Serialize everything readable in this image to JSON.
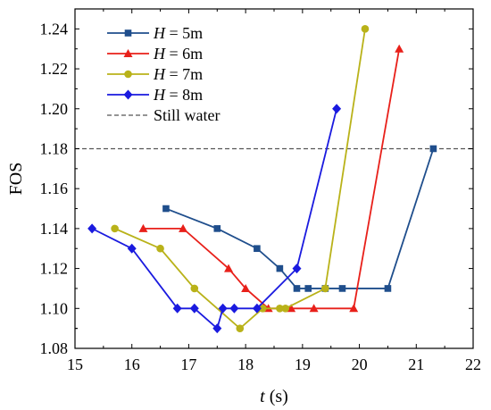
{
  "chart_data": {
    "type": "line",
    "xlabel": "t (s)",
    "ylabel": "FOS",
    "xlim": [
      15,
      22
    ],
    "ylim": [
      1.08,
      1.25
    ],
    "x_ticks": [
      "15",
      "16",
      "17",
      "18",
      "19",
      "20",
      "21",
      "22"
    ],
    "y_ticks": [
      "1.08",
      "1.10",
      "1.12",
      "1.14",
      "1.16",
      "1.18",
      "1.20",
      "1.22",
      "1.24"
    ],
    "x_tick_values": [
      15,
      16,
      17,
      18,
      19,
      20,
      21,
      22
    ],
    "y_tick_values": [
      1.08,
      1.1,
      1.12,
      1.14,
      1.16,
      1.18,
      1.2,
      1.22,
      1.24
    ],
    "legend_position": "top-left",
    "series": [
      {
        "label_var": "H",
        "label_rest": " = 5m",
        "color": "#1f4e8c",
        "marker": "square",
        "x": [
          16.6,
          17.5,
          18.2,
          18.6,
          18.9,
          19.1,
          19.4,
          19.7,
          20.5,
          21.3
        ],
        "y": [
          1.15,
          1.14,
          1.13,
          1.12,
          1.11,
          1.11,
          1.11,
          1.11,
          1.11,
          1.18
        ]
      },
      {
        "label_var": "H",
        "label_rest": " = 6m",
        "color": "#e8201a",
        "marker": "triangle",
        "x": [
          16.2,
          16.9,
          17.7,
          18.0,
          18.4,
          18.8,
          19.2,
          19.9,
          20.7
        ],
        "y": [
          1.14,
          1.14,
          1.12,
          1.11,
          1.1,
          1.1,
          1.1,
          1.1,
          1.23
        ]
      },
      {
        "label_var": "H",
        "label_rest": " = 7m",
        "color": "#b9b219",
        "marker": "circle",
        "x": [
          15.7,
          16.5,
          17.1,
          17.9,
          18.3,
          18.6,
          18.7,
          19.4,
          20.1
        ],
        "y": [
          1.14,
          1.13,
          1.11,
          1.09,
          1.1,
          1.1,
          1.1,
          1.11,
          1.24
        ]
      },
      {
        "label_var": "H",
        "label_rest": " = 8m",
        "color": "#1a1adf",
        "marker": "diamond",
        "x": [
          15.3,
          16.0,
          16.8,
          17.1,
          17.5,
          17.6,
          17.8,
          18.2,
          18.9,
          19.6
        ],
        "y": [
          1.14,
          1.13,
          1.1,
          1.1,
          1.09,
          1.1,
          1.1,
          1.1,
          1.12,
          1.2
        ]
      }
    ],
    "reference_line": {
      "label": "Still water",
      "y": 1.18,
      "color": "#555555",
      "style": "dashed"
    }
  }
}
